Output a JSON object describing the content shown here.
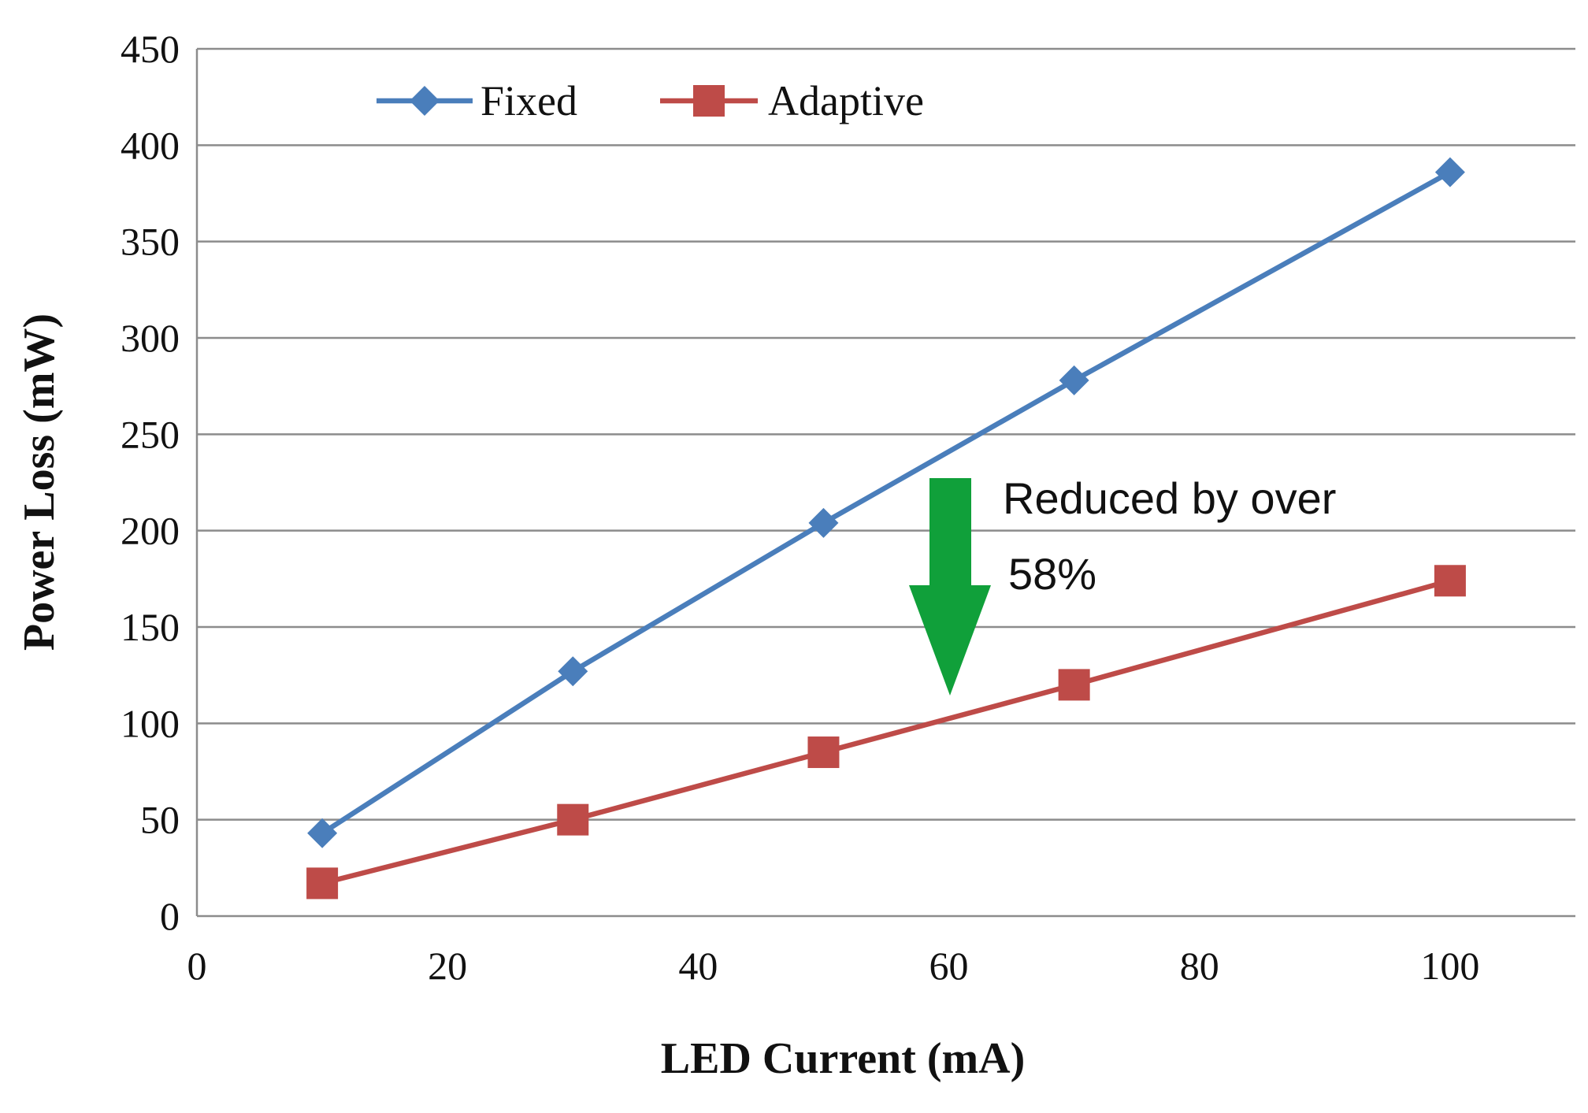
{
  "chart_data": {
    "type": "line",
    "title": "",
    "xlabel": "LED Current (mA)",
    "ylabel": "Power Loss (mW)",
    "xlim": [
      0,
      110
    ],
    "ylim": [
      0,
      450
    ],
    "xticks": [
      0,
      20,
      40,
      60,
      80,
      100
    ],
    "yticks": [
      0,
      50,
      100,
      150,
      200,
      250,
      300,
      350,
      400,
      450
    ],
    "grid": "horizontal",
    "legend_position": "top-left",
    "series": [
      {
        "name": "Fixed",
        "color": "#4a7ebb",
        "marker": "diamond",
        "x": [
          10,
          30,
          50,
          70,
          100
        ],
        "y": [
          43,
          127,
          204,
          278,
          386
        ]
      },
      {
        "name": "Adaptive",
        "color": "#be4b48",
        "marker": "square",
        "x": [
          10,
          30,
          50,
          70,
          100
        ],
        "y": [
          17,
          50,
          85,
          120,
          174
        ]
      }
    ],
    "annotation": {
      "line1": "Reduced by over",
      "line2": "58%",
      "arrow_color": "#10a03a",
      "arrow_direction": "down"
    }
  }
}
